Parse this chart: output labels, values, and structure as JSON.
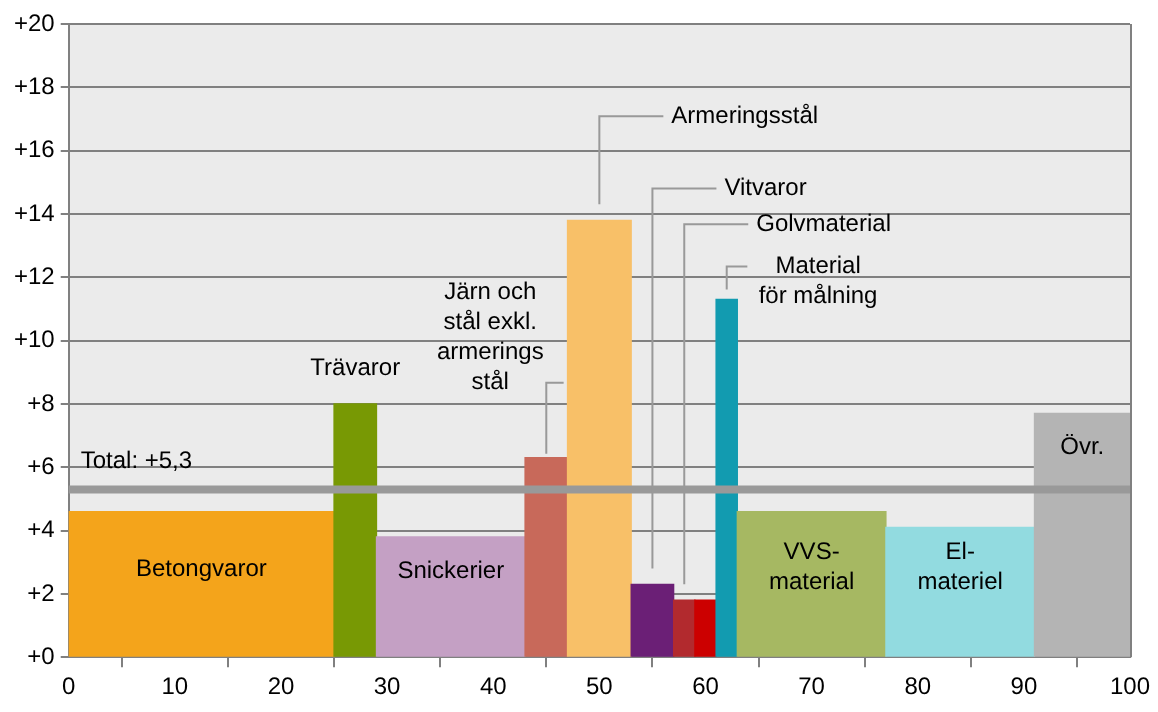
{
  "chart_data": {
    "type": "histogram",
    "bins": [
      0,
      25,
      29,
      43,
      47,
      53,
      57,
      59,
      61,
      63,
      77,
      91,
      100
    ],
    "values": [
      4.6,
      8.0,
      3.8,
      6.3,
      13.8,
      2.3,
      1.8,
      1.8,
      11.3,
      4.6,
      4.1,
      7.7
    ],
    "colors": [
      "#f4a41b",
      "#789904",
      "#c4a0c4",
      "#c8695a",
      "#f8c068",
      "#6b1f76",
      "#b22a2e",
      "#cc0000",
      "#129bb0",
      "#a6b862",
      "#92dbe0",
      "#b4b4b4"
    ],
    "xlim": [
      0,
      100
    ],
    "xticks": [
      0,
      10,
      20,
      30,
      40,
      50,
      60,
      70,
      80,
      90,
      100
    ],
    "ylim": [
      0,
      20
    ],
    "yticks": [
      {
        "value": 0,
        "label": "+0"
      },
      {
        "value": 2,
        "label": "+2"
      },
      {
        "value": 4,
        "label": "+4"
      },
      {
        "value": 6,
        "label": "+6"
      },
      {
        "value": 8,
        "label": "+8"
      },
      {
        "value": 10,
        "label": "+10"
      },
      {
        "value": 12,
        "label": "+12"
      },
      {
        "value": 14,
        "label": "+14"
      },
      {
        "value": 16,
        "label": "+16"
      },
      {
        "value": 18,
        "label": "+18"
      },
      {
        "value": 20,
        "label": "+20"
      }
    ],
    "grid": "y",
    "ref_lines": [
      {
        "axis": "y",
        "value": 5.3,
        "label": "Total: +5,3",
        "color": "#999999"
      }
    ],
    "annotations": [
      {
        "text": "Betongvaror",
        "x": 12.5,
        "y": 4.6
      },
      {
        "text": "Trävaror",
        "x": 27,
        "y": 8.0
      },
      {
        "text": "Snickerier",
        "x": 36,
        "y": 3.8
      },
      {
        "text": "Järn och\nstål exkl.\narmerings\nstål",
        "x": 45,
        "y": 6.3
      },
      {
        "text": "Armeringsstål",
        "x": 50,
        "y": 13.8
      },
      {
        "text": "Vitvaror",
        "x": 55,
        "y": 2.3
      },
      {
        "text": "Golvmaterial",
        "x": 58,
        "y": 1.8
      },
      {
        "text": "Material\nför målning",
        "x": 62,
        "y": 11.3
      },
      {
        "text": "VVS-\nmaterial",
        "x": 70,
        "y": 4.6
      },
      {
        "text": "El-\nmateriel",
        "x": 84,
        "y": 4.1
      },
      {
        "text": "Övr.",
        "x": 95.5,
        "y": 7.7
      }
    ]
  }
}
